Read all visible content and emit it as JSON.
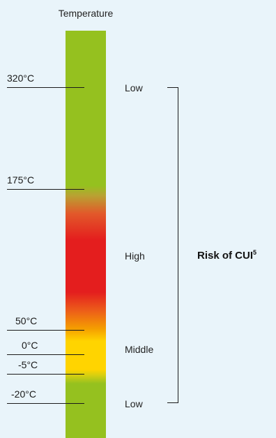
{
  "title": "Temperature",
  "temperature_marks": [
    {
      "label": "320°C"
    },
    {
      "label": "175°C"
    },
    {
      "label": "50°C"
    },
    {
      "label": "0°C"
    },
    {
      "label": "-5°C"
    },
    {
      "label": "-20°C"
    }
  ],
  "risk_levels": [
    {
      "label": "Low"
    },
    {
      "label": "High"
    },
    {
      "label": "Middle"
    },
    {
      "label": "Low"
    }
  ],
  "risk_title": "Risk of CUI",
  "risk_title_footnote": "5",
  "colors": {
    "background": "#e9f4fa",
    "low": "#95c11f",
    "high": "#e41e1e",
    "middle": "#ffd400",
    "transition": "#f5a000"
  }
}
